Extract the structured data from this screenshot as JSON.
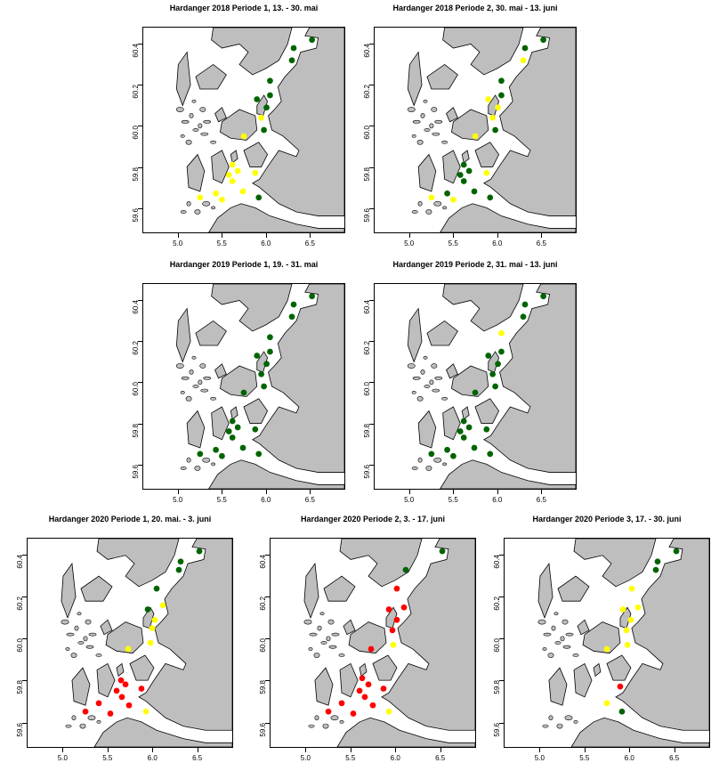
{
  "colors": {
    "sea": "#ffffff",
    "land": "#bebebe",
    "coast": "#000000",
    "green": "#006400",
    "yellow": "#ffff00",
    "red": "#ff0000"
  },
  "chart_data": [
    {
      "type": "map-scatter",
      "title": "Hardanger 2018 Periode 1, 13. - 30. mai",
      "x_ticks": [
        "5.0",
        "5.5",
        "6.0",
        "6.5"
      ],
      "y_ticks": [
        "59.6",
        "59.8",
        "60.0",
        "60.2",
        "60.4"
      ],
      "points": [
        {
          "lon": 6.53,
          "lat": 60.42,
          "color": "green"
        },
        {
          "lon": 6.32,
          "lat": 60.38,
          "color": "green"
        },
        {
          "lon": 6.3,
          "lat": 60.32,
          "color": "green"
        },
        {
          "lon": 6.05,
          "lat": 60.22,
          "color": "green"
        },
        {
          "lon": 5.9,
          "lat": 60.13,
          "color": "green"
        },
        {
          "lon": 6.05,
          "lat": 60.15,
          "color": "green"
        },
        {
          "lon": 6.01,
          "lat": 60.09,
          "color": "green"
        },
        {
          "lon": 5.95,
          "lat": 60.04,
          "color": "yellow"
        },
        {
          "lon": 5.98,
          "lat": 59.98,
          "color": "green"
        },
        {
          "lon": 5.75,
          "lat": 59.95,
          "color": "yellow"
        },
        {
          "lon": 5.62,
          "lat": 59.81,
          "color": "yellow"
        },
        {
          "lon": 5.68,
          "lat": 59.78,
          "color": "yellow"
        },
        {
          "lon": 5.88,
          "lat": 59.77,
          "color": "yellow"
        },
        {
          "lon": 5.58,
          "lat": 59.76,
          "color": "yellow"
        },
        {
          "lon": 5.62,
          "lat": 59.73,
          "color": "yellow"
        },
        {
          "lon": 5.43,
          "lat": 59.67,
          "color": "yellow"
        },
        {
          "lon": 5.74,
          "lat": 59.68,
          "color": "yellow"
        },
        {
          "lon": 5.25,
          "lat": 59.65,
          "color": "yellow"
        },
        {
          "lon": 5.5,
          "lat": 59.64,
          "color": "yellow"
        },
        {
          "lon": 5.92,
          "lat": 59.65,
          "color": "green"
        }
      ]
    },
    {
      "type": "map-scatter",
      "title": "Hardanger 2018 Periode 2, 30. mai - 13. juni",
      "x_ticks": [
        "5.0",
        "5.5",
        "6.0",
        "6.5"
      ],
      "y_ticks": [
        "59.6",
        "59.8",
        "60.0",
        "60.2",
        "60.4"
      ],
      "points": [
        {
          "lon": 6.53,
          "lat": 60.42,
          "color": "green"
        },
        {
          "lon": 6.32,
          "lat": 60.38,
          "color": "green"
        },
        {
          "lon": 6.3,
          "lat": 60.32,
          "color": "yellow"
        },
        {
          "lon": 6.05,
          "lat": 60.22,
          "color": "green"
        },
        {
          "lon": 5.9,
          "lat": 60.13,
          "color": "yellow"
        },
        {
          "lon": 6.05,
          "lat": 60.15,
          "color": "green"
        },
        {
          "lon": 6.01,
          "lat": 60.09,
          "color": "yellow"
        },
        {
          "lon": 5.95,
          "lat": 60.04,
          "color": "yellow"
        },
        {
          "lon": 5.98,
          "lat": 59.98,
          "color": "green"
        },
        {
          "lon": 5.75,
          "lat": 59.95,
          "color": "yellow"
        },
        {
          "lon": 5.62,
          "lat": 59.81,
          "color": "green"
        },
        {
          "lon": 5.68,
          "lat": 59.78,
          "color": "green"
        },
        {
          "lon": 5.88,
          "lat": 59.77,
          "color": "yellow"
        },
        {
          "lon": 5.58,
          "lat": 59.76,
          "color": "green"
        },
        {
          "lon": 5.62,
          "lat": 59.73,
          "color": "green"
        },
        {
          "lon": 5.43,
          "lat": 59.67,
          "color": "green"
        },
        {
          "lon": 5.74,
          "lat": 59.68,
          "color": "green"
        },
        {
          "lon": 5.25,
          "lat": 59.65,
          "color": "yellow"
        },
        {
          "lon": 5.5,
          "lat": 59.64,
          "color": "yellow"
        },
        {
          "lon": 5.92,
          "lat": 59.65,
          "color": "green"
        }
      ]
    },
    {
      "type": "map-scatter",
      "title": "Hardanger 2019 Periode 1, 19. - 31. mai",
      "x_ticks": [
        "5.0",
        "5.5",
        "6.0",
        "6.5"
      ],
      "y_ticks": [
        "59.6",
        "59.8",
        "60.0",
        "60.2",
        "60.4"
      ],
      "points": [
        {
          "lon": 6.53,
          "lat": 60.42,
          "color": "green"
        },
        {
          "lon": 6.32,
          "lat": 60.38,
          "color": "green"
        },
        {
          "lon": 6.3,
          "lat": 60.32,
          "color": "green"
        },
        {
          "lon": 6.05,
          "lat": 60.22,
          "color": "green"
        },
        {
          "lon": 5.9,
          "lat": 60.13,
          "color": "green"
        },
        {
          "lon": 6.05,
          "lat": 60.15,
          "color": "green"
        },
        {
          "lon": 6.01,
          "lat": 60.09,
          "color": "green"
        },
        {
          "lon": 5.95,
          "lat": 60.04,
          "color": "green"
        },
        {
          "lon": 5.98,
          "lat": 59.98,
          "color": "green"
        },
        {
          "lon": 5.75,
          "lat": 59.95,
          "color": "green"
        },
        {
          "lon": 5.62,
          "lat": 59.81,
          "color": "green"
        },
        {
          "lon": 5.68,
          "lat": 59.78,
          "color": "green"
        },
        {
          "lon": 5.88,
          "lat": 59.77,
          "color": "green"
        },
        {
          "lon": 5.58,
          "lat": 59.76,
          "color": "green"
        },
        {
          "lon": 5.62,
          "lat": 59.73,
          "color": "green"
        },
        {
          "lon": 5.43,
          "lat": 59.67,
          "color": "green"
        },
        {
          "lon": 5.74,
          "lat": 59.68,
          "color": "green"
        },
        {
          "lon": 5.25,
          "lat": 59.65,
          "color": "green"
        },
        {
          "lon": 5.5,
          "lat": 59.64,
          "color": "green"
        },
        {
          "lon": 5.92,
          "lat": 59.65,
          "color": "green"
        }
      ]
    },
    {
      "type": "map-scatter",
      "title": "Hardanger 2019 Periode 2, 31. mai - 13. juni",
      "x_ticks": [
        "5.0",
        "5.5",
        "6.0",
        "6.5"
      ],
      "y_ticks": [
        "59.6",
        "59.8",
        "60.0",
        "60.2",
        "60.4"
      ],
      "points": [
        {
          "lon": 6.53,
          "lat": 60.42,
          "color": "green"
        },
        {
          "lon": 6.32,
          "lat": 60.38,
          "color": "green"
        },
        {
          "lon": 6.3,
          "lat": 60.32,
          "color": "green"
        },
        {
          "lon": 6.05,
          "lat": 60.24,
          "color": "yellow"
        },
        {
          "lon": 5.9,
          "lat": 60.13,
          "color": "green"
        },
        {
          "lon": 6.05,
          "lat": 60.15,
          "color": "green"
        },
        {
          "lon": 6.01,
          "lat": 60.09,
          "color": "green"
        },
        {
          "lon": 5.95,
          "lat": 60.04,
          "color": "green"
        },
        {
          "lon": 5.98,
          "lat": 59.98,
          "color": "green"
        },
        {
          "lon": 5.75,
          "lat": 59.95,
          "color": "green"
        },
        {
          "lon": 5.62,
          "lat": 59.81,
          "color": "green"
        },
        {
          "lon": 5.68,
          "lat": 59.78,
          "color": "green"
        },
        {
          "lon": 5.88,
          "lat": 59.77,
          "color": "green"
        },
        {
          "lon": 5.58,
          "lat": 59.76,
          "color": "green"
        },
        {
          "lon": 5.62,
          "lat": 59.73,
          "color": "green"
        },
        {
          "lon": 5.43,
          "lat": 59.67,
          "color": "green"
        },
        {
          "lon": 5.74,
          "lat": 59.68,
          "color": "green"
        },
        {
          "lon": 5.25,
          "lat": 59.65,
          "color": "green"
        },
        {
          "lon": 5.5,
          "lat": 59.64,
          "color": "green"
        },
        {
          "lon": 5.92,
          "lat": 59.65,
          "color": "green"
        }
      ]
    },
    {
      "type": "map-scatter",
      "title": "Hardanger 2020 Periode 1, 20. mai. - 3. juni",
      "x_ticks": [
        "5.0",
        "5.5",
        "6.0",
        "6.5"
      ],
      "y_ticks": [
        "59.6",
        "59.8",
        "60.0",
        "60.2",
        "60.4"
      ],
      "points": [
        {
          "lon": 6.53,
          "lat": 60.42,
          "color": "green"
        },
        {
          "lon": 6.32,
          "lat": 60.37,
          "color": "green"
        },
        {
          "lon": 6.3,
          "lat": 60.33,
          "color": "green"
        },
        {
          "lon": 6.05,
          "lat": 60.24,
          "color": "green"
        },
        {
          "lon": 5.95,
          "lat": 60.14,
          "color": "green"
        },
        {
          "lon": 6.12,
          "lat": 60.16,
          "color": "yellow"
        },
        {
          "lon": 6.03,
          "lat": 60.09,
          "color": "yellow"
        },
        {
          "lon": 6.0,
          "lat": 60.05,
          "color": "yellow"
        },
        {
          "lon": 5.98,
          "lat": 59.98,
          "color": "yellow"
        },
        {
          "lon": 5.73,
          "lat": 59.95,
          "color": "yellow"
        },
        {
          "lon": 5.65,
          "lat": 59.8,
          "color": "red"
        },
        {
          "lon": 5.7,
          "lat": 59.78,
          "color": "red"
        },
        {
          "lon": 5.88,
          "lat": 59.76,
          "color": "red"
        },
        {
          "lon": 5.6,
          "lat": 59.75,
          "color": "red"
        },
        {
          "lon": 5.66,
          "lat": 59.72,
          "color": "red"
        },
        {
          "lon": 5.4,
          "lat": 59.69,
          "color": "red"
        },
        {
          "lon": 5.74,
          "lat": 59.68,
          "color": "red"
        },
        {
          "lon": 5.25,
          "lat": 59.65,
          "color": "red"
        },
        {
          "lon": 5.53,
          "lat": 59.64,
          "color": "red"
        },
        {
          "lon": 5.93,
          "lat": 59.65,
          "color": "yellow"
        }
      ]
    },
    {
      "type": "map-scatter",
      "title": "Hardanger 2020 Periode 2, 3. - 17. juni",
      "x_ticks": [
        "5.0",
        "5.5",
        "6.0",
        "6.5"
      ],
      "y_ticks": [
        "59.6",
        "59.8",
        "60.0",
        "60.2",
        "60.4"
      ],
      "points": [
        {
          "lon": 6.53,
          "lat": 60.42,
          "color": "green"
        },
        {
          "lon": 6.12,
          "lat": 60.33,
          "color": "green"
        },
        {
          "lon": 6.02,
          "lat": 60.24,
          "color": "red"
        },
        {
          "lon": 5.93,
          "lat": 60.14,
          "color": "red"
        },
        {
          "lon": 6.1,
          "lat": 60.15,
          "color": "red"
        },
        {
          "lon": 6.02,
          "lat": 60.09,
          "color": "red"
        },
        {
          "lon": 5.97,
          "lat": 60.04,
          "color": "red"
        },
        {
          "lon": 5.98,
          "lat": 59.97,
          "color": "yellow"
        },
        {
          "lon": 5.73,
          "lat": 59.95,
          "color": "red"
        },
        {
          "lon": 5.63,
          "lat": 59.81,
          "color": "red"
        },
        {
          "lon": 5.7,
          "lat": 59.78,
          "color": "red"
        },
        {
          "lon": 5.87,
          "lat": 59.76,
          "color": "red"
        },
        {
          "lon": 5.6,
          "lat": 59.75,
          "color": "red"
        },
        {
          "lon": 5.66,
          "lat": 59.72,
          "color": "red"
        },
        {
          "lon": 5.4,
          "lat": 59.69,
          "color": "red"
        },
        {
          "lon": 5.75,
          "lat": 59.68,
          "color": "red"
        },
        {
          "lon": 5.25,
          "lat": 59.65,
          "color": "red"
        },
        {
          "lon": 5.53,
          "lat": 59.64,
          "color": "red"
        },
        {
          "lon": 5.93,
          "lat": 59.65,
          "color": "yellow"
        }
      ]
    },
    {
      "type": "map-scatter",
      "title": "Hardanger 2020 Periode 3, 17. - 30. juni",
      "x_ticks": [
        "5.0",
        "5.5",
        "6.0",
        "6.5"
      ],
      "y_ticks": [
        "59.6",
        "59.8",
        "60.0",
        "60.2",
        "60.4"
      ],
      "points": [
        {
          "lon": 6.53,
          "lat": 60.42,
          "color": "green"
        },
        {
          "lon": 6.32,
          "lat": 60.37,
          "color": "green"
        },
        {
          "lon": 6.3,
          "lat": 60.33,
          "color": "green"
        },
        {
          "lon": 6.03,
          "lat": 60.24,
          "color": "yellow"
        },
        {
          "lon": 5.93,
          "lat": 60.14,
          "color": "yellow"
        },
        {
          "lon": 6.1,
          "lat": 60.15,
          "color": "yellow"
        },
        {
          "lon": 6.02,
          "lat": 60.09,
          "color": "yellow"
        },
        {
          "lon": 5.97,
          "lat": 60.04,
          "color": "yellow"
        },
        {
          "lon": 5.98,
          "lat": 59.97,
          "color": "yellow"
        },
        {
          "lon": 5.75,
          "lat": 59.95,
          "color": "yellow"
        },
        {
          "lon": 5.9,
          "lat": 59.77,
          "color": "red"
        },
        {
          "lon": 5.75,
          "lat": 59.69,
          "color": "yellow"
        },
        {
          "lon": 5.92,
          "lat": 59.65,
          "color": "green"
        }
      ]
    }
  ]
}
